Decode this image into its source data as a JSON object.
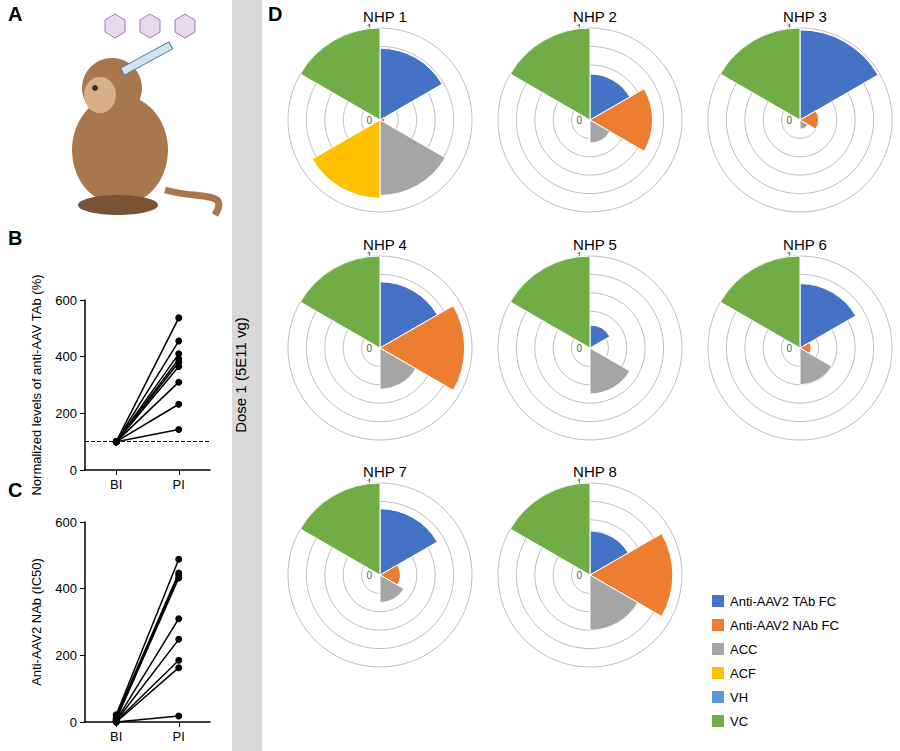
{
  "chart_data": [
    {
      "type": "illustration",
      "panel": "A"
    },
    {
      "type": "line",
      "panel": "B",
      "color": "#000000",
      "y_label": "Normalized levels of anti-AAV TAb (%)",
      "categories": [
        "BI",
        "PI"
      ],
      "baseline": 100,
      "ylim": [
        0,
        600
      ],
      "yticks": [
        0,
        200,
        400,
        600
      ],
      "grid": false,
      "series": [
        {
          "values": [
            100,
            537
          ]
        },
        {
          "values": [
            100,
            455
          ]
        },
        {
          "values": [
            100,
            410
          ]
        },
        {
          "values": [
            100,
            392
          ]
        },
        {
          "values": [
            100,
            380
          ]
        },
        {
          "values": [
            100,
            365
          ]
        },
        {
          "values": [
            100,
            310
          ]
        },
        {
          "values": [
            100,
            232
          ]
        },
        {
          "values": [
            100,
            143
          ]
        }
      ]
    },
    {
      "type": "line",
      "panel": "C",
      "color": "#000000",
      "y_label": "Anti-AAV2 NAb (IC50)",
      "categories": [
        "BI",
        "PI"
      ],
      "ylim": [
        0,
        600
      ],
      "yticks": [
        0,
        200,
        400,
        600
      ],
      "grid": false,
      "series": [
        {
          "values": [
            22,
            488
          ]
        },
        {
          "values": [
            18,
            447
          ]
        },
        {
          "values": [
            12,
            440
          ]
        },
        {
          "values": [
            8,
            432
          ]
        },
        {
          "values": [
            5,
            310
          ]
        },
        {
          "values": [
            3,
            248
          ]
        },
        {
          "values": [
            2,
            185
          ]
        },
        {
          "values": [
            0,
            163
          ]
        },
        {
          "values": [
            0,
            18
          ]
        }
      ]
    },
    {
      "type": "polar",
      "panel": "D",
      "side_label": "Dose 1 (5E11 vg)",
      "categories": [
        "Anti-AAV2 TAb FC",
        "Anti-AAV2 NAb FC",
        "ACC",
        "ACF",
        "VH",
        "VC"
      ],
      "colors": [
        "#4472c4",
        "#ed7d31",
        "#a5a5a5",
        "#ffc000",
        "#5b9bd5",
        "#70ad47"
      ],
      "ylim": [
        0,
        1
      ],
      "yticks": [
        0,
        0.2,
        0.4,
        0.6,
        0.8,
        1
      ],
      "grid": true,
      "legend": "right",
      "panels": [
        {
          "title": "NHP 1",
          "values": [
            0.78,
            0.05,
            0.82,
            0.85,
            0,
            1
          ]
        },
        {
          "title": "NHP 2",
          "values": [
            0.5,
            0.68,
            0.25,
            0,
            0,
            1
          ]
        },
        {
          "title": "NHP 3",
          "values": [
            0.98,
            0.2,
            0.1,
            0,
            0,
            1
          ]
        },
        {
          "title": "NHP 4",
          "values": [
            0.72,
            0.92,
            0.45,
            0,
            0,
            1
          ]
        },
        {
          "title": "NHP 5",
          "values": [
            0.25,
            0,
            0.5,
            0,
            0,
            1
          ]
        },
        {
          "title": "NHP 6",
          "values": [
            0.7,
            0.12,
            0.4,
            0,
            0,
            1
          ]
        },
        {
          "title": "NHP 7",
          "values": [
            0.72,
            0.22,
            0.3,
            0,
            0,
            1
          ]
        },
        {
          "title": "NHP 8",
          "values": [
            0.48,
            0.9,
            0.6,
            0,
            0,
            1
          ]
        }
      ]
    }
  ]
}
